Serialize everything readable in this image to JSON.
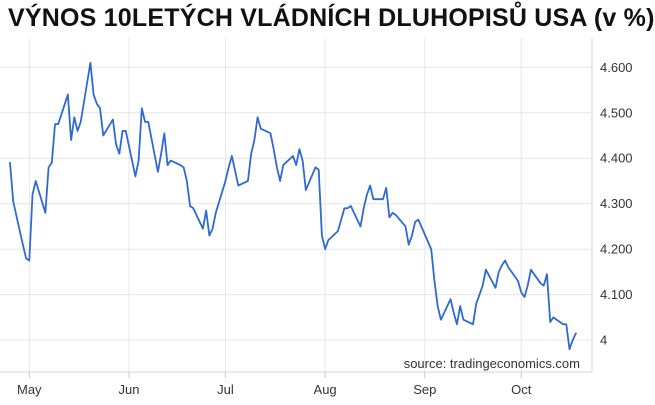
{
  "chart_data": {
    "type": "line",
    "title": "VÝNOS 10LETÝCH VLÁDNÍCH DLUHOPISŮ USA (v %)",
    "source": "source: tradingeconomics.com",
    "xlabel": "",
    "ylabel": "",
    "ylim": [
      3.93,
      4.66
    ],
    "grid": true,
    "line_color": "#2f6ad3",
    "y_ticks": [
      {
        "value": 4.6,
        "label": "4.600"
      },
      {
        "value": 4.5,
        "label": "4.500"
      },
      {
        "value": 4.4,
        "label": "4.400"
      },
      {
        "value": 4.3,
        "label": "4.300"
      },
      {
        "value": 4.2,
        "label": "4.200"
      },
      {
        "value": 4.1,
        "label": "4.100"
      },
      {
        "value": 4.0,
        "label": "4"
      }
    ],
    "x_ticks": [
      {
        "date": "2024-05-01",
        "label": "May"
      },
      {
        "date": "2024-06-01",
        "label": "Jun"
      },
      {
        "date": "2024-07-01",
        "label": "Jul"
      },
      {
        "date": "2024-08-01",
        "label": "Aug"
      },
      {
        "date": "2024-09-01",
        "label": "Sep"
      },
      {
        "date": "2024-10-01",
        "label": "Oct"
      }
    ],
    "x_range": [
      "2024-04-25",
      "2024-10-23"
    ],
    "series": [
      {
        "points": [
          [
            "2024-04-25",
            4.39
          ],
          [
            "2024-04-26",
            4.305
          ],
          [
            "2024-04-29",
            4.21
          ],
          [
            "2024-04-30",
            4.18
          ],
          [
            "2024-05-01",
            4.175
          ],
          [
            "2024-05-02",
            4.32
          ],
          [
            "2024-05-03",
            4.35
          ],
          [
            "2024-05-06",
            4.28
          ],
          [
            "2024-05-07",
            4.38
          ],
          [
            "2024-05-08",
            4.39
          ],
          [
            "2024-05-09",
            4.475
          ],
          [
            "2024-05-10",
            4.475
          ],
          [
            "2024-05-13",
            4.54
          ],
          [
            "2024-05-14",
            4.44
          ],
          [
            "2024-05-15",
            4.49
          ],
          [
            "2024-05-16",
            4.46
          ],
          [
            "2024-05-17",
            4.48
          ],
          [
            "2024-05-20",
            4.61
          ],
          [
            "2024-05-21",
            4.54
          ],
          [
            "2024-05-22",
            4.52
          ],
          [
            "2024-05-23",
            4.51
          ],
          [
            "2024-05-24",
            4.45
          ],
          [
            "2024-05-27",
            4.485
          ],
          [
            "2024-05-28",
            4.43
          ],
          [
            "2024-05-29",
            4.41
          ],
          [
            "2024-05-30",
            4.46
          ],
          [
            "2024-05-31",
            4.46
          ],
          [
            "2024-06-03",
            4.36
          ],
          [
            "2024-06-04",
            4.395
          ],
          [
            "2024-06-05",
            4.51
          ],
          [
            "2024-06-06",
            4.48
          ],
          [
            "2024-06-07",
            4.48
          ],
          [
            "2024-06-10",
            4.37
          ],
          [
            "2024-06-11",
            4.41
          ],
          [
            "2024-06-12",
            4.455
          ],
          [
            "2024-06-13",
            4.385
          ],
          [
            "2024-06-14",
            4.395
          ],
          [
            "2024-06-17",
            4.385
          ],
          [
            "2024-06-18",
            4.38
          ],
          [
            "2024-06-19",
            4.35
          ],
          [
            "2024-06-20",
            4.295
          ],
          [
            "2024-06-21",
            4.29
          ],
          [
            "2024-06-24",
            4.245
          ],
          [
            "2024-06-25",
            4.285
          ],
          [
            "2024-06-26",
            4.23
          ],
          [
            "2024-06-27",
            4.245
          ],
          [
            "2024-06-28",
            4.28
          ],
          [
            "2024-07-01",
            4.35
          ],
          [
            "2024-07-02",
            4.38
          ],
          [
            "2024-07-03",
            4.405
          ],
          [
            "2024-07-05",
            4.34
          ],
          [
            "2024-07-08",
            4.35
          ],
          [
            "2024-07-09",
            4.41
          ],
          [
            "2024-07-10",
            4.44
          ],
          [
            "2024-07-11",
            4.49
          ],
          [
            "2024-07-12",
            4.465
          ],
          [
            "2024-07-15",
            4.455
          ],
          [
            "2024-07-16",
            4.42
          ],
          [
            "2024-07-17",
            4.38
          ],
          [
            "2024-07-18",
            4.35
          ],
          [
            "2024-07-19",
            4.385
          ],
          [
            "2024-07-22",
            4.405
          ],
          [
            "2024-07-23",
            4.385
          ],
          [
            "2024-07-24",
            4.42
          ],
          [
            "2024-07-25",
            4.395
          ],
          [
            "2024-07-26",
            4.33
          ],
          [
            "2024-07-29",
            4.38
          ],
          [
            "2024-07-30",
            4.375
          ],
          [
            "2024-07-31",
            4.23
          ],
          [
            "2024-08-01",
            4.2
          ],
          [
            "2024-08-02",
            4.22
          ],
          [
            "2024-08-05",
            4.24
          ],
          [
            "2024-08-06",
            4.265
          ],
          [
            "2024-08-07",
            4.29
          ],
          [
            "2024-08-08",
            4.29
          ],
          [
            "2024-08-09",
            4.295
          ],
          [
            "2024-08-12",
            4.25
          ],
          [
            "2024-08-13",
            4.29
          ],
          [
            "2024-08-14",
            4.32
          ],
          [
            "2024-08-15",
            4.34
          ],
          [
            "2024-08-16",
            4.31
          ],
          [
            "2024-08-19",
            4.31
          ],
          [
            "2024-08-20",
            4.335
          ],
          [
            "2024-08-21",
            4.27
          ],
          [
            "2024-08-22",
            4.28
          ],
          [
            "2024-08-23",
            4.275
          ],
          [
            "2024-08-26",
            4.25
          ],
          [
            "2024-08-27",
            4.21
          ],
          [
            "2024-08-28",
            4.23
          ],
          [
            "2024-08-29",
            4.26
          ],
          [
            "2024-08-30",
            4.265
          ],
          [
            "2024-09-03",
            4.2
          ],
          [
            "2024-09-04",
            4.13
          ],
          [
            "2024-09-05",
            4.075
          ],
          [
            "2024-09-06",
            4.045
          ],
          [
            "2024-09-09",
            4.09
          ],
          [
            "2024-09-10",
            4.06
          ],
          [
            "2024-09-11",
            4.035
          ],
          [
            "2024-09-12",
            4.075
          ],
          [
            "2024-09-13",
            4.045
          ],
          [
            "2024-09-16",
            4.035
          ],
          [
            "2024-09-17",
            4.08
          ],
          [
            "2024-09-18",
            4.1
          ],
          [
            "2024-09-19",
            4.12
          ],
          [
            "2024-09-20",
            4.155
          ],
          [
            "2024-09-23",
            4.115
          ],
          [
            "2024-09-24",
            4.15
          ],
          [
            "2024-09-25",
            4.165
          ],
          [
            "2024-09-26",
            4.175
          ],
          [
            "2024-09-27",
            4.16
          ],
          [
            "2024-09-30",
            4.13
          ],
          [
            "2024-10-01",
            4.105
          ],
          [
            "2024-10-02",
            4.095
          ],
          [
            "2024-10-03",
            4.12
          ],
          [
            "2024-10-04",
            4.155
          ],
          [
            "2024-10-07",
            4.125
          ],
          [
            "2024-10-08",
            4.12
          ],
          [
            "2024-10-09",
            4.145
          ],
          [
            "2024-10-10",
            4.04
          ],
          [
            "2024-10-11",
            4.05
          ],
          [
            "2024-10-14",
            4.035
          ],
          [
            "2024-10-15",
            4.035
          ],
          [
            "2024-10-16",
            3.98
          ],
          [
            "2024-10-17",
            4.0
          ],
          [
            "2024-10-18",
            4.015
          ]
        ]
      }
    ]
  }
}
